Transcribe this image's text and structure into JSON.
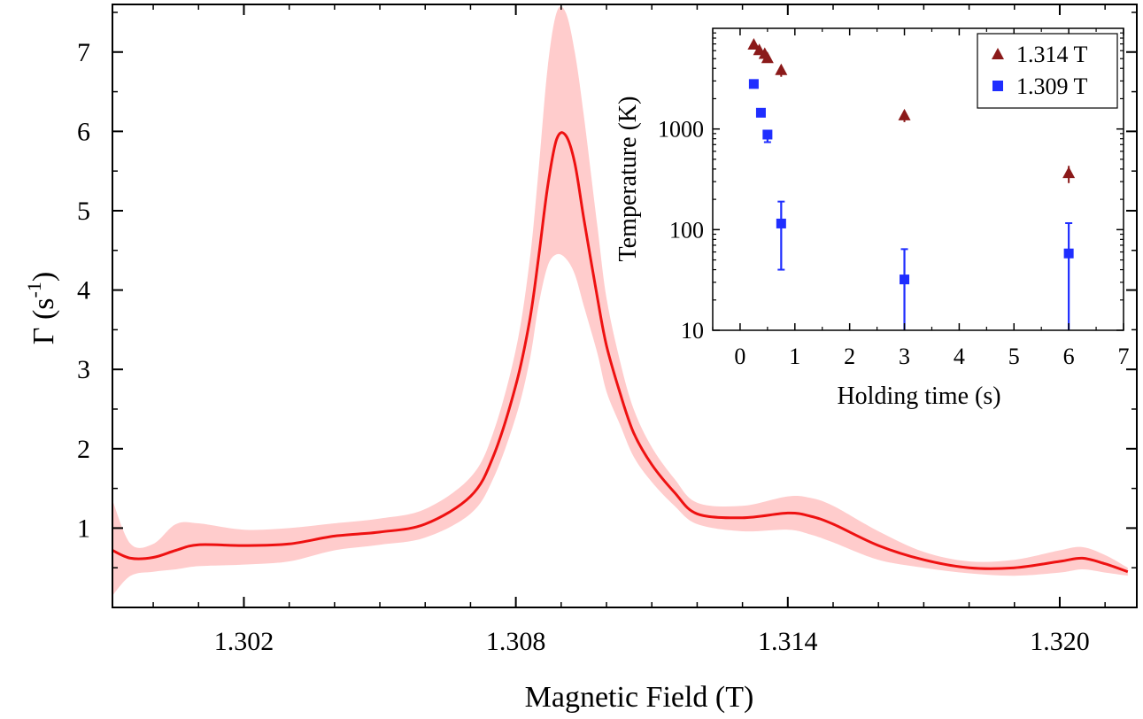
{
  "chart_data": [
    {
      "id": "main",
      "type": "line",
      "xlabel": "Magnetic Field (T)",
      "ylabel_main": "Γ (s",
      "ylabel_sup": "-1",
      "ylabel_close": ")",
      "xlim": [
        1.2991,
        1.3217
      ],
      "ylim": [
        0,
        7.6
      ],
      "xticks": [
        1.302,
        1.308,
        1.314,
        1.32
      ],
      "xtick_labels": [
        "1.302",
        "1.308",
        "1.314",
        "1.320"
      ],
      "yticks": [
        1,
        2,
        3,
        4,
        5,
        6,
        7
      ],
      "ytick_labels": [
        "1",
        "2",
        "3",
        "4",
        "5",
        "6",
        "7"
      ],
      "line_color": "#ee1111",
      "band_color": "#ffcccc",
      "series": [
        {
          "name": "Gamma",
          "x": [
            1.2991,
            1.2995,
            1.3,
            1.3005,
            1.301,
            1.302,
            1.303,
            1.304,
            1.305,
            1.306,
            1.307,
            1.3075,
            1.308,
            1.3083,
            1.3085,
            1.3087,
            1.3089,
            1.3091,
            1.3093,
            1.3095,
            1.3098,
            1.31,
            1.3103,
            1.3106,
            1.311,
            1.3115,
            1.312,
            1.313,
            1.314,
            1.3145,
            1.315,
            1.316,
            1.317,
            1.318,
            1.319,
            1.32,
            1.3205,
            1.321,
            1.3215
          ],
          "y": [
            0.72,
            0.62,
            0.63,
            0.72,
            0.79,
            0.78,
            0.8,
            0.9,
            0.95,
            1.05,
            1.4,
            1.9,
            2.8,
            3.6,
            4.4,
            5.3,
            5.9,
            5.95,
            5.6,
            4.9,
            3.9,
            3.3,
            2.7,
            2.2,
            1.8,
            1.45,
            1.18,
            1.13,
            1.19,
            1.15,
            1.05,
            0.78,
            0.6,
            0.5,
            0.5,
            0.58,
            0.62,
            0.55,
            0.45
          ],
          "upper": [
            1.35,
            0.8,
            0.8,
            1.05,
            1.06,
            0.98,
            1.0,
            1.06,
            1.12,
            1.24,
            1.64,
            2.2,
            3.25,
            4.35,
            5.5,
            6.8,
            7.5,
            7.5,
            7.0,
            6.2,
            4.8,
            3.9,
            3.1,
            2.5,
            2.02,
            1.62,
            1.32,
            1.28,
            1.4,
            1.38,
            1.28,
            0.96,
            0.7,
            0.58,
            0.6,
            0.72,
            0.76,
            0.66,
            0.5
          ],
          "lower": [
            0.15,
            0.4,
            0.45,
            0.48,
            0.52,
            0.54,
            0.58,
            0.72,
            0.79,
            0.88,
            1.18,
            1.62,
            2.4,
            3.1,
            3.8,
            4.3,
            4.45,
            4.4,
            4.2,
            3.8,
            3.2,
            2.72,
            2.3,
            1.9,
            1.58,
            1.28,
            1.05,
            0.96,
            0.98,
            0.92,
            0.82,
            0.6,
            0.5,
            0.43,
            0.4,
            0.44,
            0.48,
            0.44,
            0.4
          ]
        }
      ]
    },
    {
      "id": "inset",
      "type": "scatter",
      "xlabel": "Holding time (s)",
      "ylabel": "Temperature (K)",
      "yscale": "log",
      "xlim": [
        -0.5,
        7
      ],
      "ylim": [
        10,
        10000
      ],
      "xticks": [
        0,
        1,
        2,
        3,
        4,
        5,
        6,
        7
      ],
      "xtick_labels": [
        "0",
        "1",
        "2",
        "3",
        "4",
        "5",
        "6",
        "7"
      ],
      "yticks": [
        10,
        100,
        1000
      ],
      "ytick_labels": [
        "10",
        "100",
        "1000"
      ],
      "legend_position": "top-right",
      "series": [
        {
          "name": "1.314 T",
          "marker": "triangle",
          "color": "#8b1a1a",
          "x": [
            0.25,
            0.35,
            0.45,
            0.5,
            0.75,
            3.0,
            6.0
          ],
          "y": [
            6800,
            6000,
            5500,
            5000,
            3800,
            1350,
            360
          ],
          "err": [
            400,
            400,
            400,
            400,
            500,
            180,
            70
          ]
        },
        {
          "name": "1.309 T",
          "marker": "square",
          "color": "#1f2eff",
          "x": [
            0.25,
            0.38,
            0.5,
            0.75,
            3.0,
            6.0
          ],
          "y": [
            2800,
            1450,
            880,
            115,
            32,
            58
          ],
          "err_low": [
            100,
            100,
            140,
            75,
            32,
            58
          ],
          "err_high": [
            100,
            100,
            80,
            75,
            32,
            58
          ]
        }
      ]
    }
  ]
}
